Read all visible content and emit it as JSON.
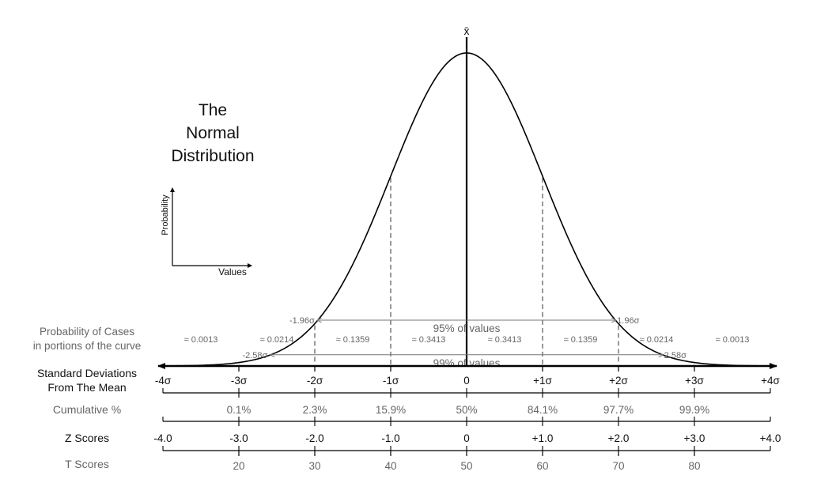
{
  "chart_data": {
    "type": "line",
    "title": "The Normal Distribution",
    "title_lines": [
      "The",
      "Normal",
      "Distribution"
    ],
    "mean_symbol": "x̄",
    "inset": {
      "ylabel": "Probability",
      "xlabel": "Values"
    },
    "curve": {
      "distribution": "normal",
      "mean": 0,
      "sd": 1
    },
    "xlim": [
      -4,
      4
    ],
    "sigma_dashed_lines": [
      -3,
      -2,
      -1,
      1,
      2,
      3
    ],
    "intervals": [
      {
        "label": "95% of values",
        "left_label": "-1.96σ",
        "right_label": "1.96σ",
        "from": -1.96,
        "to": 1.96
      },
      {
        "label": "99% of values",
        "left_label": "-2.58σ",
        "right_label": "2.58σ",
        "from": -2.58,
        "to": 2.58
      }
    ],
    "probability_of_cases": {
      "title_lines": [
        "Probability of Cases",
        "in portions of the curve"
      ],
      "labels": [
        "≈ 0.0013",
        "≈ 0.0214",
        "≈ 0.1359",
        "≈ 0.3413",
        "≈ 0.3413",
        "≈ 0.1359",
        "≈ 0.0214",
        "≈ 0.0013"
      ],
      "centers": [
        -3.5,
        -2.5,
        -1.5,
        -0.5,
        0.5,
        1.5,
        2.5,
        3.5
      ]
    },
    "scales": [
      {
        "name": "standard-deviations",
        "title_lines": [
          "Standard Deviations",
          "From The Mean"
        ],
        "ticks": [
          -4,
          -3,
          -2,
          -1,
          0,
          1,
          2,
          3,
          4
        ],
        "labels": [
          "-4σ",
          "-3σ",
          "-2σ",
          "-1σ",
          "0",
          "+1σ",
          "+2σ",
          "+3σ",
          "+4σ"
        ]
      },
      {
        "name": "cumulative-percent",
        "title_lines": [
          "Cumulative %"
        ],
        "ticks": [
          -3,
          -2,
          -1,
          0,
          1,
          2,
          3
        ],
        "labels": [
          "0.1%",
          "2.3%",
          "15.9%",
          "50%",
          "84.1%",
          "97.7%",
          "99.9%"
        ]
      },
      {
        "name": "z-scores",
        "title_lines": [
          "Z Scores"
        ],
        "ticks": [
          -4,
          -3,
          -2,
          -1,
          0,
          1,
          2,
          3,
          4
        ],
        "labels": [
          "-4.0",
          "-3.0",
          "-2.0",
          "-1.0",
          "0",
          "+1.0",
          "+2.0",
          "+3.0",
          "+4.0"
        ]
      },
      {
        "name": "t-scores",
        "title_lines": [
          "T Scores"
        ],
        "ticks": [
          -3,
          -2,
          -1,
          0,
          1,
          2,
          3
        ],
        "labels": [
          "20",
          "30",
          "40",
          "50",
          "60",
          "70",
          "80"
        ]
      }
    ],
    "colors": {
      "curve": "#000000",
      "text_dark": "#111111",
      "text_grey": "#666666",
      "interval_line": "#777777"
    }
  }
}
